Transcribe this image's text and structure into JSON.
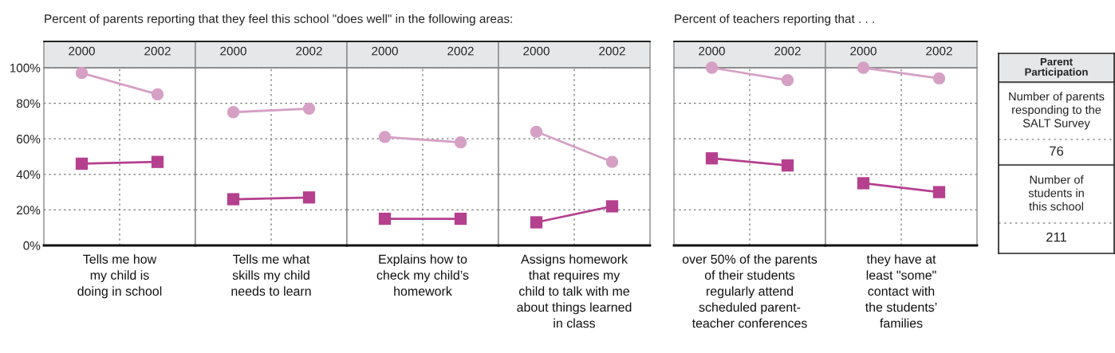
{
  "chart_data": [
    {
      "type": "line",
      "title": "Percent of parents reporting that they feel this school \"does well\" in the following areas:",
      "xlabel": "Tells me how\nmy child is\ndoing in school",
      "categories": [
        "2000",
        "2002"
      ],
      "ylim": [
        0,
        100
      ],
      "yticks": [
        {
          "value": 0,
          "label": "0%"
        },
        {
          "value": 20,
          "label": "20%"
        },
        {
          "value": 40,
          "label": "40%"
        },
        {
          "value": 60,
          "label": "60%"
        },
        {
          "value": 80,
          "label": "80%"
        },
        {
          "value": 100,
          "label": "100%"
        }
      ],
      "grid": true,
      "series": [
        {
          "color": "#d6a0c5",
          "marker": "circle",
          "values": [
            97,
            85
          ]
        },
        {
          "color": "#b5408e",
          "marker": "square",
          "values": [
            46,
            47
          ]
        }
      ]
    },
    {
      "type": "line",
      "xlabel": "Tells me what\nskills my child\nneeds to learn",
      "categories": [
        "2000",
        "2002"
      ],
      "ylim": [
        0,
        100
      ],
      "yticks": [
        0,
        20,
        40,
        60,
        80,
        100
      ],
      "grid": true,
      "tick_labels": "x",
      "series": [
        {
          "color": "#d6a0c5",
          "marker": "circle",
          "values": [
            75,
            77
          ]
        },
        {
          "color": "#b5408e",
          "marker": "square",
          "values": [
            26,
            27
          ]
        }
      ]
    },
    {
      "type": "line",
      "xlabel": "Explains how to\ncheck my child’s\nhomework",
      "categories": [
        "2000",
        "2002"
      ],
      "ylim": [
        0,
        100
      ],
      "yticks": [
        0,
        20,
        40,
        60,
        80,
        100
      ],
      "grid": true,
      "tick_labels": "x",
      "series": [
        {
          "color": "#d6a0c5",
          "marker": "circle",
          "values": [
            61,
            58
          ]
        },
        {
          "color": "#b5408e",
          "marker": "square",
          "values": [
            15,
            15
          ]
        }
      ]
    },
    {
      "type": "line",
      "xlabel": "Assigns homework\nthat requires my\nchild to talk with me\nabout things learned\nin class",
      "categories": [
        "2000",
        "2002"
      ],
      "ylim": [
        0,
        100
      ],
      "yticks": [
        0,
        20,
        40,
        60,
        80,
        100
      ],
      "grid": true,
      "tick_labels": "x",
      "series": [
        {
          "color": "#d6a0c5",
          "marker": "circle",
          "values": [
            64,
            47
          ]
        },
        {
          "color": "#b5408e",
          "marker": "square",
          "values": [
            13,
            22
          ]
        }
      ]
    },
    {
      "type": "line",
      "title": "Percent of teachers reporting that . . .",
      "xlabel": "over 50% of the parents\nof their students\nregularly attend\nscheduled parent-\nteacher conferences",
      "categories": [
        "2000",
        "2002"
      ],
      "ylim": [
        0,
        100
      ],
      "yticks": [
        0,
        20,
        40,
        60,
        80,
        100
      ],
      "grid": true,
      "tick_labels": "x",
      "series": [
        {
          "color": "#d6a0c5",
          "marker": "circle",
          "values": [
            100,
            93
          ]
        },
        {
          "color": "#b5408e",
          "marker": "square",
          "values": [
            49,
            45
          ]
        }
      ]
    },
    {
      "type": "line",
      "xlabel": "they have at\nleast \"some\"\ncontact with\nthe students’\nfamilies",
      "categories": [
        "2000",
        "2002"
      ],
      "ylim": [
        0,
        100
      ],
      "yticks": [
        0,
        20,
        40,
        60,
        80,
        100
      ],
      "grid": true,
      "tick_labels": "x",
      "series": [
        {
          "color": "#d6a0c5",
          "marker": "circle",
          "values": [
            100,
            94
          ]
        },
        {
          "color": "#b5408e",
          "marker": "square",
          "values": [
            35,
            30
          ]
        }
      ]
    },
    {
      "type": "other",
      "title": "Parent\nParticipation",
      "annotations": [
        "Number of parents\nresponding to the\nSALT Survey",
        "76",
        "Number of\nstudents in\nthis school",
        "211"
      ]
    }
  ]
}
